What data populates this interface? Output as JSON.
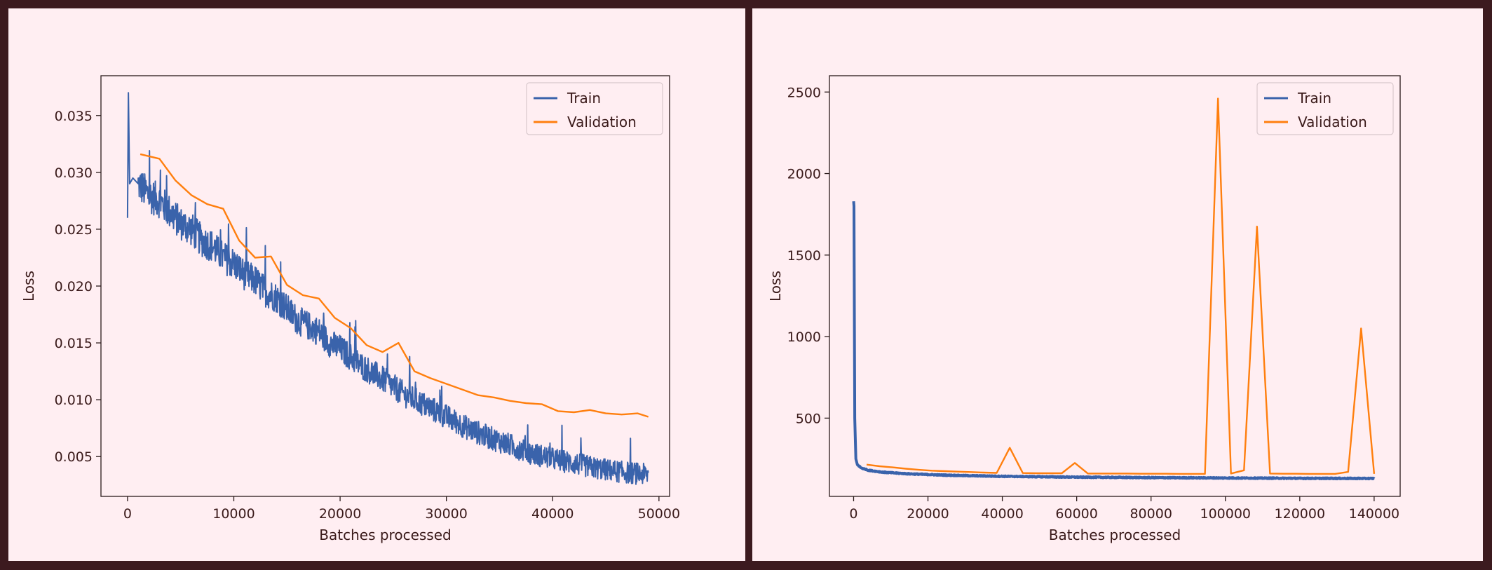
{
  "colors": {
    "background": "#ffeef2",
    "frame": "#3c1a1f",
    "train": "#3a63ab",
    "validation": "#ff7f0e",
    "text": "#3a1a1a"
  },
  "chart_data": [
    {
      "type": "line",
      "xlabel": "Batches processed",
      "ylabel": "Loss",
      "xlim": [
        -2500,
        51000
      ],
      "ylim": [
        0.0015,
        0.0385
      ],
      "xticks": [
        0,
        10000,
        20000,
        30000,
        40000,
        50000
      ],
      "xtick_labels": [
        "0",
        "10000",
        "20000",
        "30000",
        "40000",
        "50000"
      ],
      "yticks": [
        0.005,
        0.01,
        0.015,
        0.02,
        0.025,
        0.03,
        0.035
      ],
      "ytick_labels": [
        "0.005",
        "0.010",
        "0.015",
        "0.020",
        "0.025",
        "0.030",
        "0.035"
      ],
      "legend": {
        "placement": "top-right",
        "entries": [
          "Train",
          "Validation"
        ]
      },
      "grid": false,
      "series": [
        {
          "name": "Train",
          "color": "#3a63ab",
          "noise": 0.0016,
          "x": [
            0,
            80,
            200,
            500,
            1000,
            2000,
            3000,
            4000,
            5000,
            6000,
            7000,
            8000,
            9000,
            10000,
            11000,
            12000,
            13000,
            14000,
            15000,
            16000,
            17000,
            18000,
            19000,
            20000,
            22000,
            24000,
            26000,
            28000,
            30000,
            32000,
            34000,
            36000,
            38000,
            40000,
            42000,
            44000,
            46000,
            48000,
            49000
          ],
          "y": [
            0.026,
            0.037,
            0.029,
            0.0295,
            0.029,
            0.028,
            0.0275,
            0.0265,
            0.0255,
            0.025,
            0.024,
            0.0235,
            0.0225,
            0.022,
            0.021,
            0.0205,
            0.0195,
            0.019,
            0.018,
            0.017,
            0.0165,
            0.016,
            0.015,
            0.0145,
            0.013,
            0.0118,
            0.0105,
            0.0095,
            0.0085,
            0.0075,
            0.0067,
            0.006,
            0.0053,
            0.0048,
            0.0044,
            0.004,
            0.0037,
            0.0035,
            0.0034
          ]
        },
        {
          "name": "Validation",
          "color": "#ff7f0e",
          "x": [
            1200,
            3000,
            4500,
            6000,
            7500,
            9000,
            10500,
            12000,
            13500,
            15000,
            16500,
            18000,
            19500,
            21000,
            22500,
            24000,
            25500,
            27000,
            28500,
            30000,
            31500,
            33000,
            34500,
            36000,
            37500,
            39000,
            40500,
            42000,
            43500,
            45000,
            46500,
            48000,
            49000
          ],
          "y": [
            0.0316,
            0.0312,
            0.0293,
            0.028,
            0.0272,
            0.0268,
            0.024,
            0.0225,
            0.0226,
            0.0201,
            0.0192,
            0.0189,
            0.0172,
            0.0163,
            0.0148,
            0.0142,
            0.015,
            0.0125,
            0.0119,
            0.0114,
            0.0109,
            0.0104,
            0.0102,
            0.0099,
            0.0097,
            0.0096,
            0.009,
            0.0089,
            0.0091,
            0.0088,
            0.0087,
            0.0088,
            0.0085
          ]
        }
      ]
    },
    {
      "type": "line",
      "xlabel": "Batches processed",
      "ylabel": "Loss",
      "xlim": [
        -6500,
        147000
      ],
      "ylim": [
        20,
        2600
      ],
      "xticks": [
        0,
        20000,
        40000,
        60000,
        80000,
        100000,
        120000,
        140000
      ],
      "xtick_labels": [
        "0",
        "20000",
        "40000",
        "60000",
        "80000",
        "100000",
        "120000",
        "140000"
      ],
      "yticks": [
        500,
        1000,
        1500,
        2000,
        2500
      ],
      "ytick_labels": [
        "500",
        "1000",
        "1500",
        "2000",
        "2500"
      ],
      "legend": {
        "placement": "top-right",
        "entries": [
          "Train",
          "Validation"
        ]
      },
      "grid": false,
      "series": [
        {
          "name": "Train",
          "color": "#3a63ab",
          "noise": 3,
          "x": [
            0,
            100,
            300,
            600,
            1000,
            2000,
            4000,
            8000,
            15000,
            25000,
            40000,
            60000,
            80000,
            100000,
            120000,
            140000
          ],
          "y": [
            1830,
            1800,
            500,
            250,
            215,
            195,
            180,
            168,
            158,
            150,
            143,
            138,
            135,
            133,
            131,
            130
          ],
          "lw": 4
        },
        {
          "name": "Validation",
          "color": "#ff7f0e",
          "x": [
            3500,
            7000,
            10500,
            14000,
            17500,
            21000,
            24500,
            28000,
            31500,
            35000,
            38500,
            42000,
            45500,
            49000,
            52500,
            56000,
            59500,
            63000,
            66500,
            70000,
            73500,
            77000,
            80500,
            84000,
            87500,
            91000,
            94500,
            98000,
            101500,
            105000,
            108500,
            112000,
            115500,
            119000,
            122500,
            126000,
            129500,
            133000,
            136500,
            140000
          ],
          "y": [
            215,
            205,
            198,
            190,
            183,
            178,
            175,
            172,
            169,
            166,
            164,
            318,
            163,
            162,
            162,
            162,
            225,
            160,
            160,
            160,
            160,
            159,
            159,
            159,
            158,
            158,
            158,
            2460,
            160,
            180,
            1675,
            160,
            159,
            159,
            158,
            158,
            158,
            170,
            1050,
            158
          ]
        }
      ]
    }
  ]
}
